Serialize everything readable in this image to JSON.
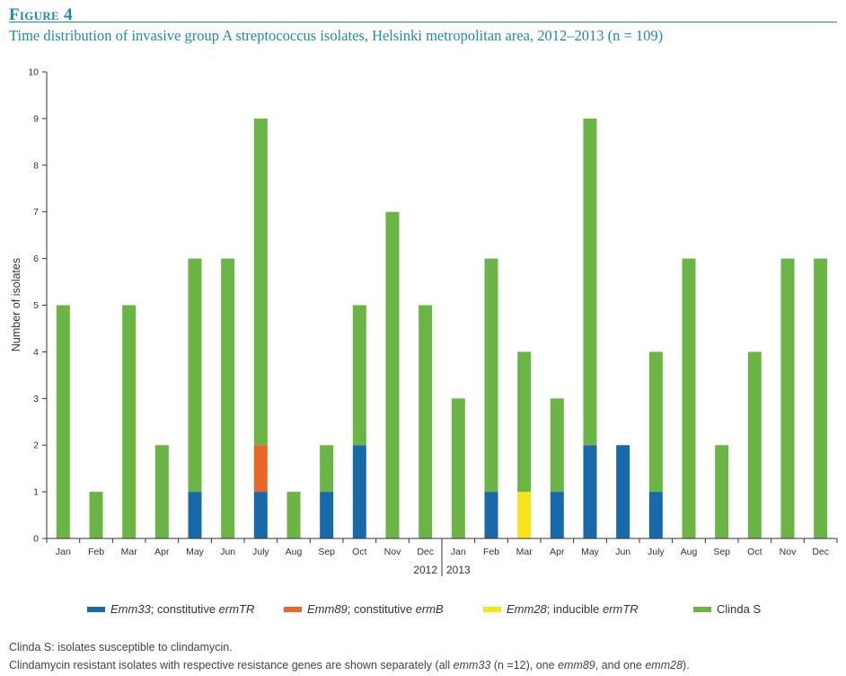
{
  "figure": {
    "label": "Figure 4",
    "title": "Time distribution of invasive group A streptococcus isolates, Helsinki metropolitan area, 2012–2013 (n = 109)"
  },
  "chart_data": {
    "type": "bar",
    "stacked": true,
    "ylabel": "Number of isolates",
    "ylim": [
      0,
      10
    ],
    "yticks": [
      0,
      1,
      2,
      3,
      4,
      5,
      6,
      7,
      8,
      9,
      10
    ],
    "categories": [
      "Jan",
      "Feb",
      "Mar",
      "Apr",
      "May",
      "Jun",
      "July",
      "Aug",
      "Sep",
      "Oct",
      "Nov",
      "Dec",
      "Jan",
      "Feb",
      "Mar",
      "Apr",
      "May",
      "Jun",
      "July",
      "Aug",
      "Sep",
      "Oct",
      "Nov",
      "Dec"
    ],
    "year_groups": [
      {
        "label": "2012",
        "start": 0,
        "end": 11
      },
      {
        "label": "2013",
        "start": 12,
        "end": 23
      }
    ],
    "series": [
      {
        "name": "Emm33",
        "color": "#1769aa",
        "values": [
          0,
          0,
          0,
          0,
          1,
          0,
          1,
          0,
          1,
          2,
          0,
          0,
          0,
          1,
          0,
          1,
          2,
          2,
          1,
          0,
          0,
          0,
          0,
          0
        ]
      },
      {
        "name": "Emm89",
        "color": "#e8662a",
        "values": [
          0,
          0,
          0,
          0,
          0,
          0,
          1,
          0,
          0,
          0,
          0,
          0,
          0,
          0,
          0,
          0,
          0,
          0,
          0,
          0,
          0,
          0,
          0,
          0
        ]
      },
      {
        "name": "Emm28",
        "color": "#f7e21b",
        "values": [
          0,
          0,
          0,
          0,
          0,
          0,
          0,
          0,
          0,
          0,
          0,
          0,
          0,
          0,
          1,
          0,
          0,
          0,
          0,
          0,
          0,
          0,
          0,
          0
        ]
      },
      {
        "name": "Clinda S",
        "color": "#6ab545",
        "values": [
          5,
          1,
          5,
          2,
          5,
          6,
          7,
          1,
          1,
          3,
          7,
          5,
          3,
          5,
          3,
          2,
          7,
          0,
          3,
          6,
          2,
          4,
          6,
          6
        ]
      }
    ],
    "legend": [
      {
        "name": "Emm33",
        "rest": "; constitutive ",
        "gene": "ermTR",
        "color": "#1769aa"
      },
      {
        "name": "Emm89",
        "rest": "; constitutive ",
        "gene": "ermB",
        "color": "#e8662a"
      },
      {
        "name": "Emm28",
        "rest": "; inducible ",
        "gene": "ermTR",
        "color": "#f7e21b"
      },
      {
        "name": "",
        "rest": "Clinda S",
        "gene": "",
        "color": "#6ab545"
      }
    ]
  },
  "footnotes": {
    "line1": "Clinda S: isolates susceptible to clindamycin.",
    "line2_a": "Clindamycin resistant isolates with respective resistance genes are shown separately (all ",
    "line2_b": "emm33",
    "line2_c": " (n =12), one ",
    "line2_d": "emm89",
    "line2_e": ", and one ",
    "line2_f": "emm28",
    "line2_g": ")."
  }
}
